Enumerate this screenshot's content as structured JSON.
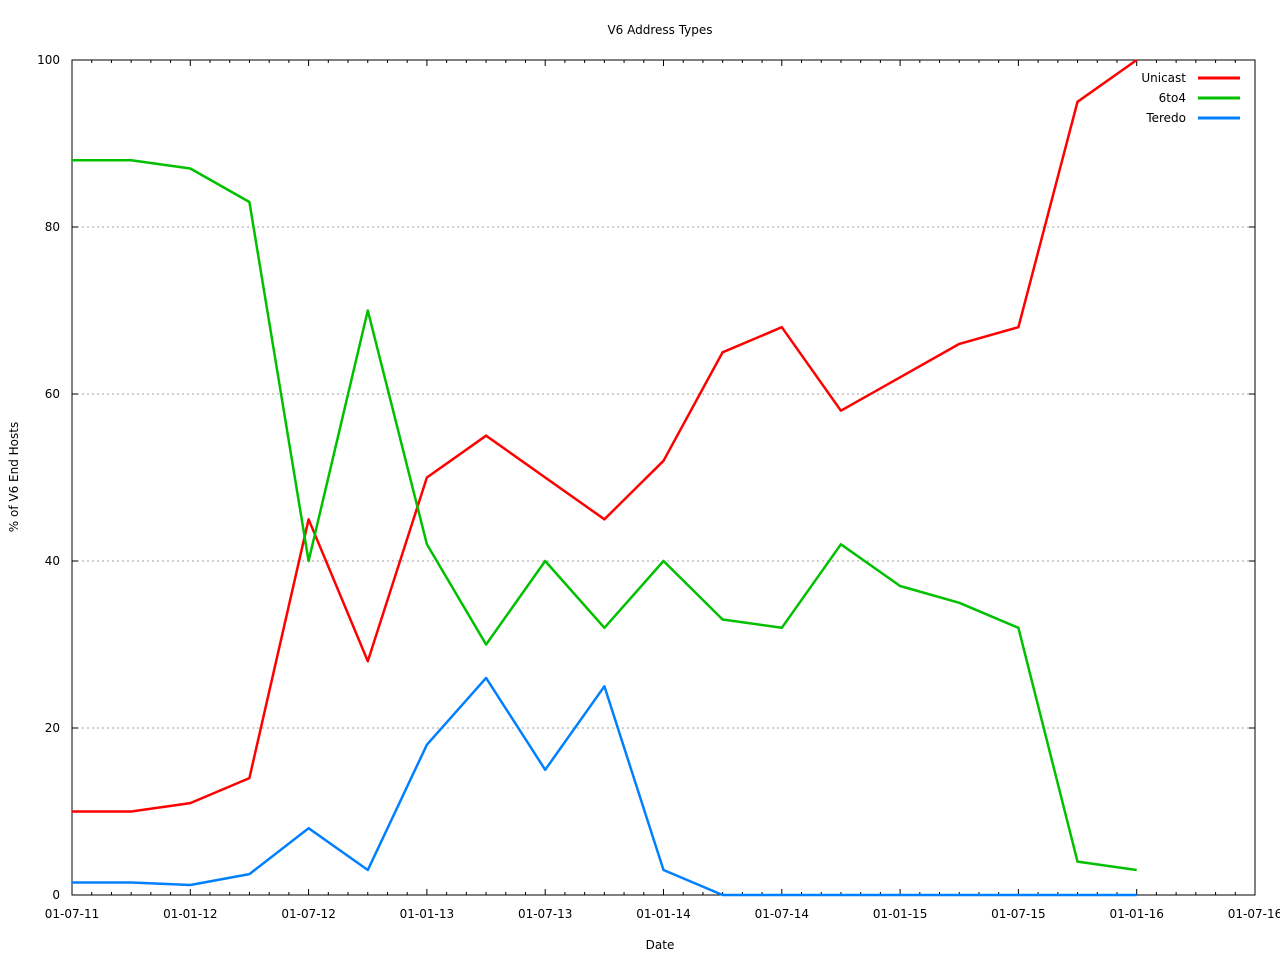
{
  "chart_data": {
    "type": "line",
    "title": "V6 Address Types",
    "xlabel": "Date",
    "ylabel": "% of V6 End Hosts",
    "ylim": [
      0,
      100
    ],
    "yticks": [
      0,
      20,
      40,
      60,
      80,
      100
    ],
    "xticks": [
      "01-07-11",
      "01-01-12",
      "01-07-12",
      "01-01-13",
      "01-07-13",
      "01-01-14",
      "01-07-14",
      "01-01-15",
      "01-07-15",
      "01-01-16",
      "01-07-16"
    ],
    "grid": true,
    "legend_position": "top-right",
    "x": [
      "01-07-11",
      "01-10-11",
      "01-01-12",
      "01-04-12",
      "01-07-12",
      "01-10-12",
      "01-01-13",
      "01-04-13",
      "01-07-13",
      "01-10-13",
      "01-01-14",
      "01-04-14",
      "01-07-14",
      "01-10-14",
      "01-01-15",
      "01-04-15",
      "01-07-15",
      "01-10-15",
      "01-01-16"
    ],
    "series": [
      {
        "name": "Unicast",
        "color": "#ff0000",
        "values": [
          10,
          10,
          11,
          14,
          45,
          28,
          50,
          55,
          50,
          45,
          52,
          65,
          68,
          58,
          62,
          66,
          68,
          95,
          100
        ]
      },
      {
        "name": "6to4",
        "color": "#00c000",
        "values": [
          88,
          88,
          87,
          83,
          40,
          70,
          42,
          30,
          40,
          32,
          40,
          33,
          32,
          42,
          37,
          35,
          32,
          4,
          3
        ]
      },
      {
        "name": "Teredo",
        "color": "#0080ff",
        "values": [
          1.5,
          1.5,
          1.2,
          2.5,
          8,
          3,
          18,
          26,
          15,
          25,
          3,
          0,
          0,
          0,
          0,
          0,
          0,
          0,
          0
        ]
      }
    ]
  }
}
